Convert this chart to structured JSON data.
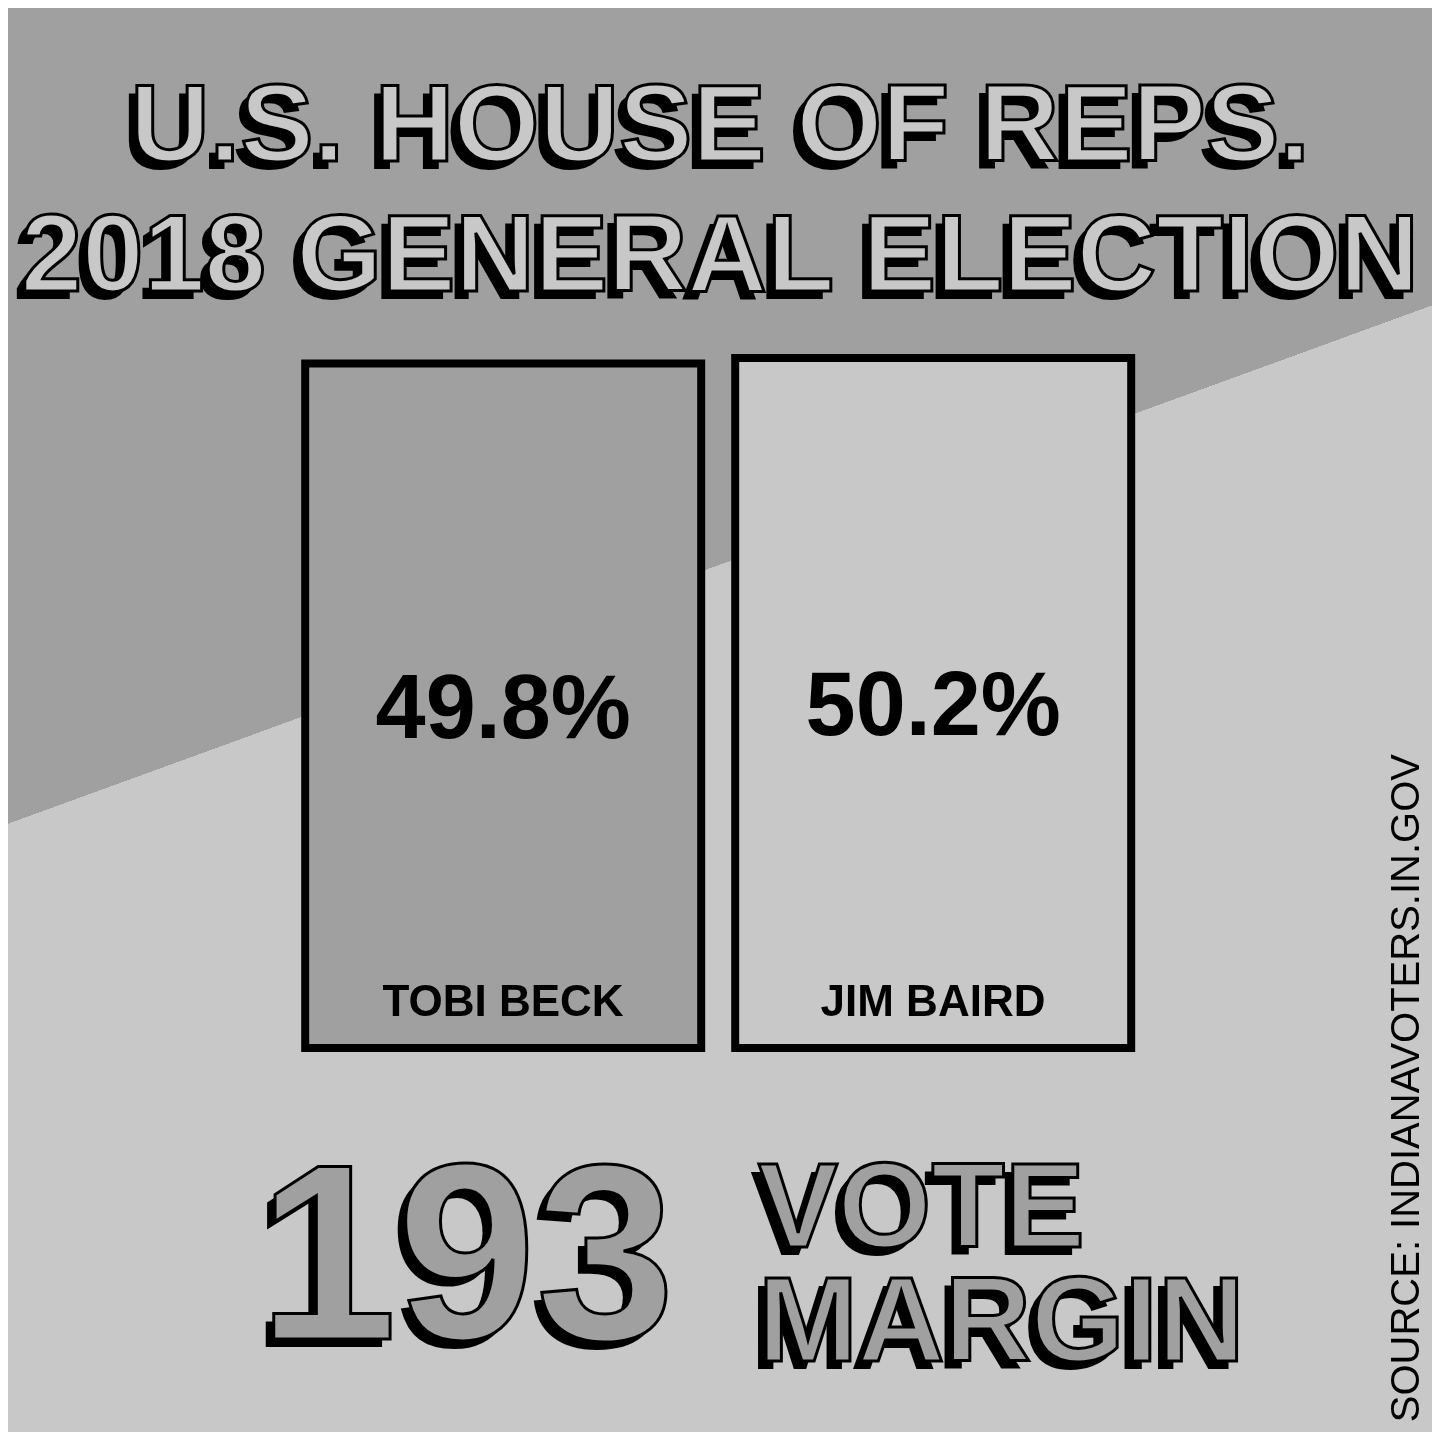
{
  "chart_data": {
    "type": "bar",
    "title": "U.S. HOUSE OF REPS.",
    "subtitle": "2018 GENERAL ELECTION",
    "categories": [
      "TOBI BECK",
      "JIM BAIRD"
    ],
    "values": [
      49.8,
      50.2
    ],
    "value_labels": [
      "49.8%",
      "50.2%"
    ],
    "colors": [
      "#a0a0a0",
      "#c8c8c8"
    ],
    "annotations": [
      "193",
      "VOTE MARGIN",
      "SOURCE: INDIANAVOTERS.IN.GOV"
    ]
  }
}
